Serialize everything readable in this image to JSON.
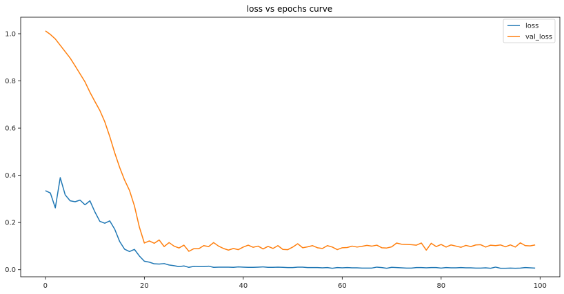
{
  "chart_data": {
    "type": "line",
    "title": "loss vs epochs curve",
    "xlabel": "",
    "ylabel": "",
    "xlim": [
      -5,
      104
    ],
    "ylim": [
      -0.03,
      1.07
    ],
    "x_ticks": [
      0,
      20,
      40,
      60,
      80,
      100
    ],
    "y_ticks": [
      0.0,
      0.2,
      0.4,
      0.6,
      0.8,
      1.0
    ],
    "x_tick_labels": [
      "0",
      "20",
      "40",
      "60",
      "80",
      "100"
    ],
    "y_tick_labels": [
      "0.0",
      "0.2",
      "0.4",
      "0.6",
      "0.8",
      "1.0"
    ],
    "grid": false,
    "legend_position": "top-right",
    "x": [
      0,
      1,
      2,
      3,
      4,
      5,
      6,
      7,
      8,
      9,
      10,
      11,
      12,
      13,
      14,
      15,
      16,
      17,
      18,
      19,
      20,
      21,
      22,
      23,
      24,
      25,
      26,
      27,
      28,
      29,
      30,
      31,
      32,
      33,
      34,
      35,
      36,
      37,
      38,
      39,
      40,
      41,
      42,
      43,
      44,
      45,
      46,
      47,
      48,
      49,
      50,
      51,
      52,
      53,
      54,
      55,
      56,
      57,
      58,
      59,
      60,
      61,
      62,
      63,
      64,
      65,
      66,
      67,
      68,
      69,
      70,
      71,
      72,
      73,
      74,
      75,
      76,
      77,
      78,
      79,
      80,
      81,
      82,
      83,
      84,
      85,
      86,
      87,
      88,
      89,
      90,
      91,
      92,
      93,
      94,
      95,
      96,
      97,
      98,
      99
    ],
    "series": [
      {
        "name": "loss",
        "color": "#1f77b4",
        "values": [
          0.335,
          0.325,
          0.262,
          0.39,
          0.317,
          0.292,
          0.288,
          0.295,
          0.275,
          0.292,
          0.245,
          0.205,
          0.197,
          0.207,
          0.172,
          0.12,
          0.087,
          0.077,
          0.086,
          0.058,
          0.036,
          0.032,
          0.025,
          0.024,
          0.026,
          0.02,
          0.017,
          0.013,
          0.016,
          0.01,
          0.014,
          0.013,
          0.013,
          0.015,
          0.01,
          0.011,
          0.011,
          0.011,
          0.01,
          0.012,
          0.011,
          0.01,
          0.01,
          0.011,
          0.012,
          0.01,
          0.01,
          0.011,
          0.01,
          0.009,
          0.009,
          0.011,
          0.011,
          0.009,
          0.009,
          0.009,
          0.008,
          0.009,
          0.006,
          0.009,
          0.008,
          0.009,
          0.008,
          0.008,
          0.007,
          0.007,
          0.007,
          0.011,
          0.009,
          0.006,
          0.01,
          0.009,
          0.008,
          0.007,
          0.007,
          0.009,
          0.009,
          0.008,
          0.009,
          0.009,
          0.007,
          0.009,
          0.008,
          0.008,
          0.009,
          0.008,
          0.008,
          0.007,
          0.007,
          0.008,
          0.006,
          0.011,
          0.006,
          0.006,
          0.007,
          0.006,
          0.007,
          0.009,
          0.008,
          0.007
        ]
      },
      {
        "name": "val_loss",
        "color": "#ff7f0e",
        "values": [
          1.012,
          0.997,
          0.978,
          0.951,
          0.924,
          0.897,
          0.864,
          0.83,
          0.796,
          0.752,
          0.713,
          0.675,
          0.627,
          0.565,
          0.496,
          0.434,
          0.38,
          0.336,
          0.27,
          0.18,
          0.113,
          0.122,
          0.112,
          0.126,
          0.098,
          0.115,
          0.1,
          0.092,
          0.104,
          0.078,
          0.089,
          0.089,
          0.102,
          0.098,
          0.115,
          0.1,
          0.09,
          0.083,
          0.09,
          0.085,
          0.096,
          0.104,
          0.095,
          0.1,
          0.088,
          0.099,
          0.09,
          0.102,
          0.086,
          0.085,
          0.096,
          0.11,
          0.093,
          0.097,
          0.102,
          0.093,
          0.09,
          0.102,
          0.096,
          0.085,
          0.093,
          0.094,
          0.1,
          0.096,
          0.099,
          0.103,
          0.1,
          0.104,
          0.093,
          0.092,
          0.097,
          0.113,
          0.108,
          0.107,
          0.106,
          0.104,
          0.113,
          0.083,
          0.112,
          0.098,
          0.107,
          0.096,
          0.105,
          0.1,
          0.095,
          0.103,
          0.098,
          0.105,
          0.106,
          0.096,
          0.104,
          0.102,
          0.105,
          0.097,
          0.105,
          0.096,
          0.114,
          0.102,
          0.101,
          0.105
        ]
      }
    ]
  }
}
